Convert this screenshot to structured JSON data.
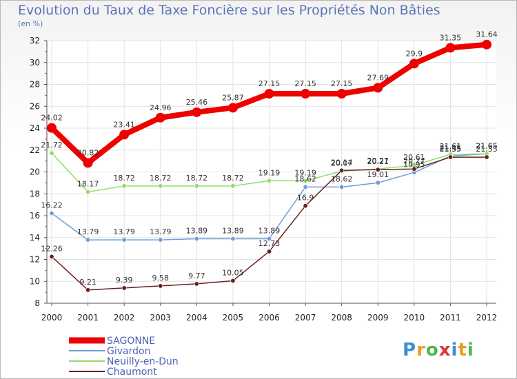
{
  "title": "Evolution du Taux de Taxe Foncière sur les Propriétés Non Bâties",
  "unit": "(en %)",
  "brand": "Proxiti",
  "chart_data": {
    "type": "line",
    "title": "Evolution du Taux de Taxe Foncière sur les Propriétés Non Bâties",
    "ylabel": "(en %)",
    "xlabel": "",
    "x": [
      "2000",
      "2001",
      "2002",
      "2003",
      "2004",
      "2005",
      "2006",
      "2007",
      "2008",
      "2009",
      "2010",
      "2011",
      "2012"
    ],
    "ylim": [
      8,
      32
    ],
    "yticks": [
      "8",
      "10",
      "12",
      "14",
      "16",
      "18",
      "20",
      "22",
      "24",
      "26",
      "28",
      "30",
      "32"
    ],
    "grid": true,
    "legend": "bottom-left",
    "series": [
      {
        "name": "SAGONNE",
        "color": "#ee0000",
        "values": [
          24.02,
          20.82,
          23.41,
          24.96,
          25.46,
          25.87,
          27.15,
          27.15,
          27.15,
          27.69,
          29.9,
          31.35,
          31.64
        ],
        "labels": [
          "24.02",
          "20.82",
          "23.41",
          "24.96",
          "25.46",
          "25.87",
          "27.15",
          "27.15",
          "27.15",
          "27.69",
          "29.9",
          "31.35",
          "31.64"
        ]
      },
      {
        "name": "Givardon",
        "color": "#6e9ed6",
        "values": [
          16.22,
          13.79,
          13.79,
          13.79,
          13.89,
          13.89,
          13.89,
          18.62,
          18.62,
          19.01,
          19.95,
          21.45,
          21.65
        ],
        "labels": [
          "16.22",
          "13.79",
          "13.79",
          "13.79",
          "13.89",
          "13.89",
          "13.89",
          "18.62",
          "18.62",
          "19.01",
          "19.95",
          "21.45",
          "21.65"
        ]
      },
      {
        "name": "Neuilly-en-Dun",
        "color": "#8fde6a",
        "values": [
          21.72,
          18.17,
          18.72,
          18.72,
          18.72,
          18.72,
          19.19,
          19.19,
          20.07,
          20.27,
          20.61,
          21.61,
          21.65
        ],
        "labels": [
          "21.72",
          "18.17",
          "18.72",
          "18.72",
          "18.72",
          "18.72",
          "19.19",
          "19.19",
          "20.07",
          "20.27",
          "20.61",
          "21.61",
          "21.65"
        ]
      },
      {
        "name": "Chaumont",
        "color": "#6a1e1e",
        "values": [
          12.26,
          9.21,
          9.39,
          9.58,
          9.77,
          10.05,
          12.73,
          16.9,
          20.14,
          20.21,
          20.27,
          21.35,
          21.35
        ],
        "labels": [
          "12.26",
          "9.21",
          "9.39",
          "9.58",
          "9.77",
          "10.05",
          "12.73",
          "16.9",
          "20.14",
          "20.21",
          "20.27",
          "21.35",
          "21.35"
        ]
      }
    ]
  }
}
